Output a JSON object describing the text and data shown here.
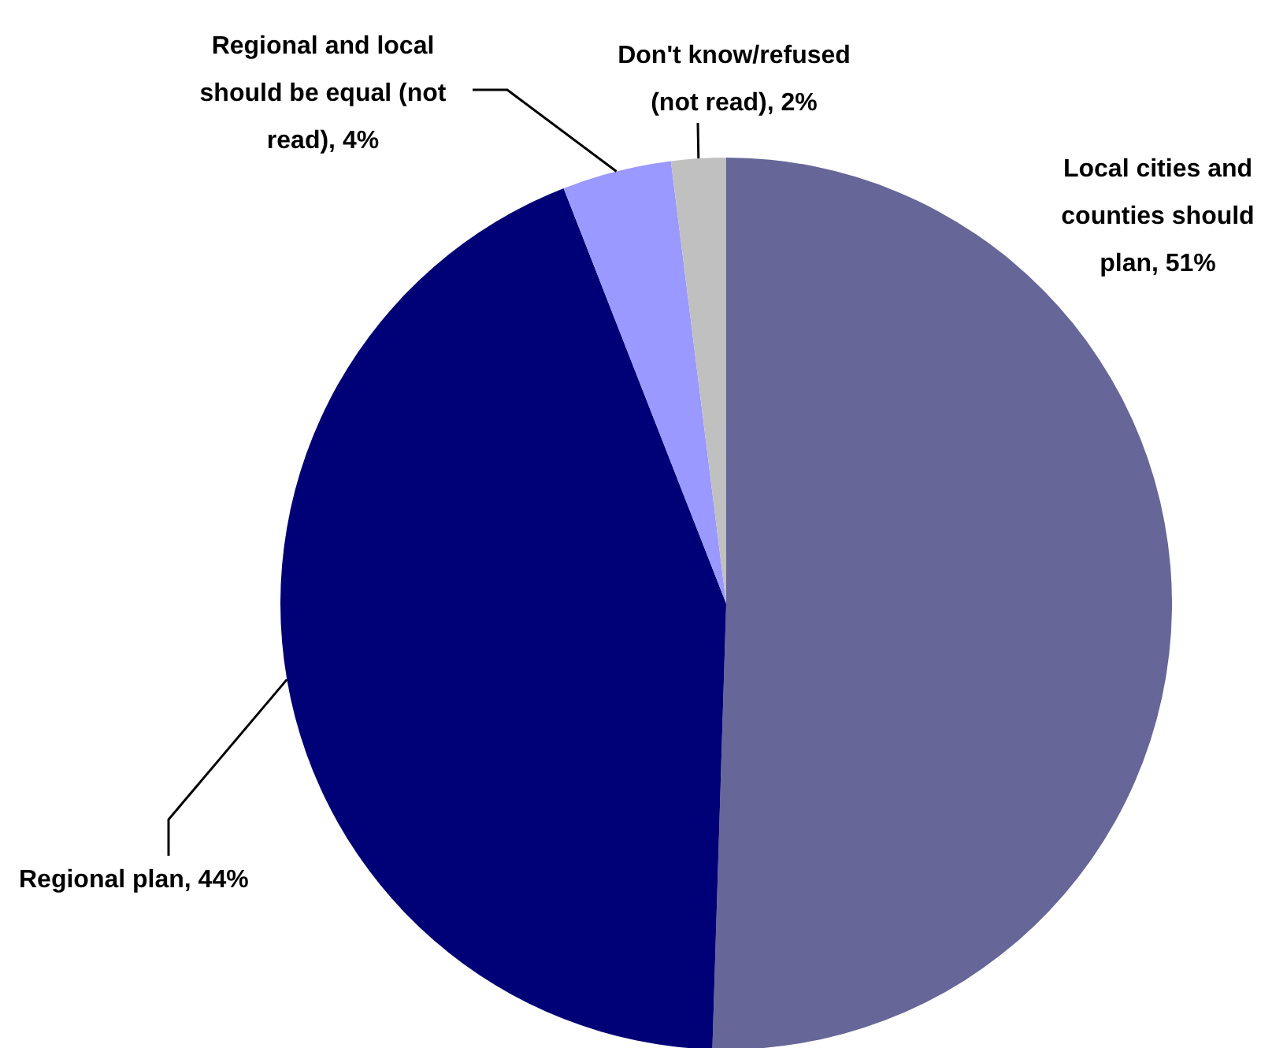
{
  "chart_data": {
    "type": "pie",
    "categories": [
      "Local cities and counties should plan",
      "Regional plan",
      "Regional and local should be equal (not read)",
      "Don't know/refused (not read)"
    ],
    "values": [
      51,
      44,
      4,
      2
    ],
    "colors": [
      "#666699",
      "#000077",
      "#9999ff",
      "#c0c0c0"
    ],
    "value_labels": [
      "51%",
      "44%",
      "4%",
      "2%"
    ]
  }
}
